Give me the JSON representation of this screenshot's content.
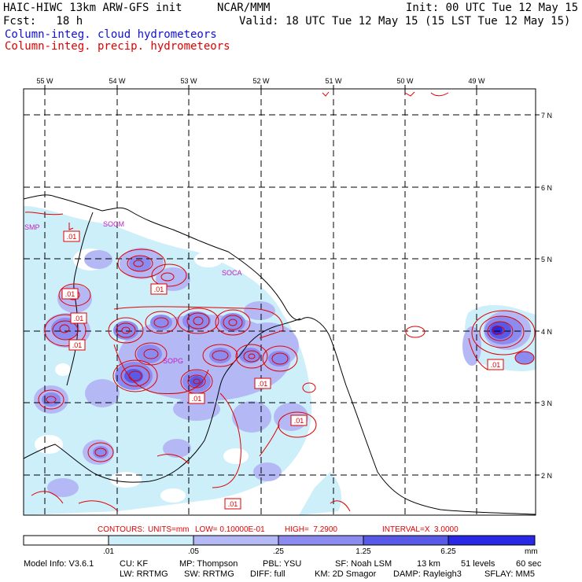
{
  "header": {
    "model_title": "HAIC-HIWC 13km ARW-GFS init",
    "center": "NCAR/MMM",
    "init": "Init: 00 UTC Tue 12 May 15",
    "fcst": "Fcst:   18 h",
    "valid": "Valid: 18 UTC Tue 12 May 15 (15 LST Tue 12 May 15)",
    "field_cloud": "Column-integ. cloud hydrometeors",
    "field_precip": "Column-integ. precip. hydrometeors"
  },
  "map": {
    "lon_labels": [
      "55 W",
      "54 W",
      "53 W",
      "52 W",
      "51 W",
      "50 W",
      "49 W"
    ],
    "lat_labels": [
      "7 N",
      "6 N",
      "5 N",
      "4 N",
      "3 N",
      "2 N"
    ],
    "place_labels": [
      "SMP",
      "SOCM",
      "SOCA",
      "SOPG"
    ],
    "contour_labels": [
      ".01",
      ".01",
      ".01",
      ".01",
      ".01",
      ".01",
      ".01",
      ".01",
      ".01",
      ".01"
    ]
  },
  "contours_line": {
    "contours": "CONTOURS:",
    "units": "UNITS=mm",
    "low": "LOW= 0.10000E-01",
    "high": "HIGH=  7.2900",
    "interval": "INTERVAL=X  3.0000"
  },
  "colorbar": {
    "ticks": [
      ".01",
      ".05",
      ".25",
      "1.25",
      "6.25"
    ],
    "unit": "mm",
    "colors": [
      "#ffffff",
      "#cdeffa",
      "#b4b9f5",
      "#8c8cf0",
      "#5a5ae8",
      "#2828e6"
    ]
  },
  "model_info": {
    "line1": [
      "Model Info: V3.6.1",
      "CU: KF",
      "MP: Thompson",
      "PBL: YSU",
      "SF: Noah LSM",
      "13 km",
      "51 levels",
      "60 sec"
    ],
    "line2": [
      "LW: RRTMG",
      "SW: RRTMG",
      "DIFF: full",
      "KM: 2D Smagor",
      "DAMP: Rayleigh3",
      "SFLAY: MM5"
    ]
  }
}
